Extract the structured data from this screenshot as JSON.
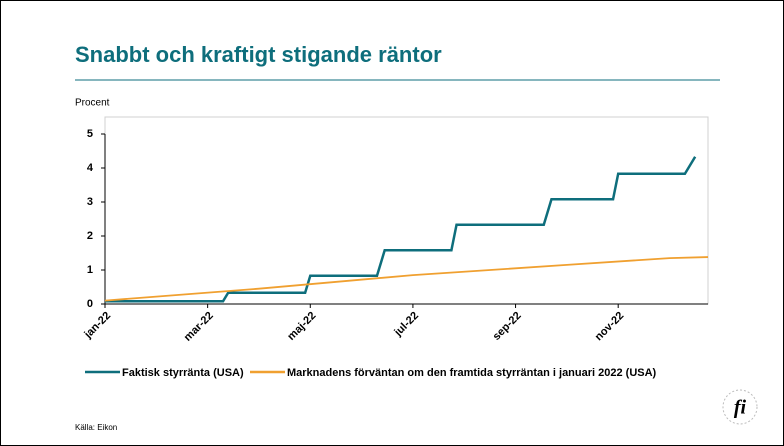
{
  "title": "Snabbt och kraftigt stigande räntor",
  "source": "Källa: Eikon",
  "chart_data": {
    "type": "line",
    "y_label": "Procent",
    "xlim": [
      0,
      11.75
    ],
    "xticks": [
      {
        "value": 0,
        "label": "jan-22"
      },
      {
        "value": 2,
        "label": "mar-22"
      },
      {
        "value": 4,
        "label": "maj-22"
      },
      {
        "value": 6,
        "label": "jul-22"
      },
      {
        "value": 8,
        "label": "sep-22"
      },
      {
        "value": 10,
        "label": "nov-22"
      }
    ],
    "ylim": [
      0,
      5
    ],
    "yticks": [
      0,
      1,
      2,
      3,
      4,
      5
    ],
    "series": [
      {
        "name": "Faktisk styrränta (USA)",
        "color": "#0e6e7c",
        "x": [
          0,
          2.3,
          2.4,
          3.9,
          4.0,
          5.3,
          5.45,
          6.75,
          6.85,
          8.55,
          8.7,
          9.9,
          10.0,
          11.3,
          11.5
        ],
        "values": [
          0.08,
          0.08,
          0.33,
          0.33,
          0.83,
          0.83,
          1.58,
          1.58,
          2.33,
          2.33,
          3.08,
          3.08,
          3.83,
          3.83,
          4.33
        ]
      },
      {
        "name": "Marknadens förväntan om den framtida styrräntan i januari 2022 (USA)",
        "color": "#f0a030",
        "x": [
          0,
          3,
          6,
          9,
          11,
          11.75
        ],
        "values": [
          0.1,
          0.45,
          0.85,
          1.15,
          1.35,
          1.38
        ]
      }
    ]
  }
}
